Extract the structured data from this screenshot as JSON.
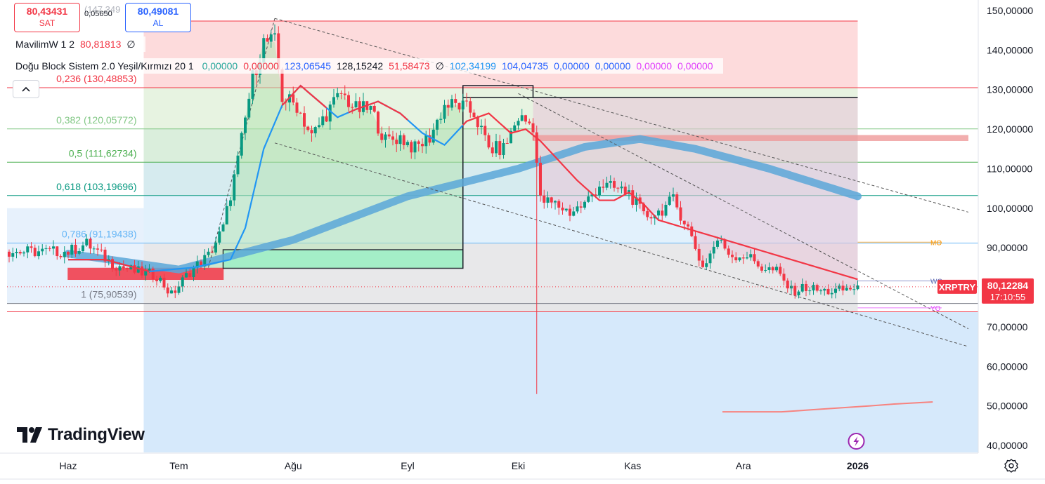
{
  "toolbar": {
    "sell_price": "80,43431",
    "sell_label": "SAT",
    "buy_price": "80,49081",
    "buy_label": "AL",
    "spread": "0,05650",
    "hidden_value": "(147,349"
  },
  "indicators": {
    "row1": {
      "name": "MavilimW 1 2",
      "value": "80,81813",
      "value_color": "#f23645",
      "flag": "∅"
    },
    "row2": {
      "name": "Doğu Block Sistem 2.0 Yeşil/Kırmızı 20 1",
      "values": [
        {
          "text": "0,00000",
          "color": "#26a69a"
        },
        {
          "text": "0,00000",
          "color": "#f23645"
        },
        {
          "text": "123,06545",
          "color": "#2962ff"
        },
        {
          "text": "128,15242",
          "color": "#131722"
        },
        {
          "text": "51,58473",
          "color": "#f23645"
        },
        {
          "text": "∅",
          "color": "#131722"
        },
        {
          "text": "102,34199",
          "color": "#2196f3"
        },
        {
          "text": "104,04735",
          "color": "#2962ff"
        },
        {
          "text": "0,00000",
          "color": "#2962ff"
        },
        {
          "text": "0,00000",
          "color": "#2962ff"
        },
        {
          "text": "0,00000",
          "color": "#e040fb"
        },
        {
          "text": "0,00000",
          "color": "#e040fb"
        }
      ]
    },
    "collapse_icon": "chevron-up-icon"
  },
  "fib_levels": [
    {
      "label": "0,236 (130,48853)",
      "price": 130.48853,
      "color": "#f23645",
      "fill": "#fdd5d6"
    },
    {
      "label": "0,382 (120,05772)",
      "price": 120.05772,
      "color": "#81c784",
      "fill": "#e3f1dc"
    },
    {
      "label": "0,5 (111,62734)",
      "price": 111.62734,
      "color": "#4caf50",
      "fill": "#d4ebd6"
    },
    {
      "label": "0,618 (103,19696)",
      "price": 103.19696,
      "color": "#089981",
      "fill": "#cfe7ec"
    },
    {
      "label": "0,786 (91,19438)",
      "price": 91.19438,
      "color": "#64b5f6",
      "fill": "#ddeefb"
    },
    {
      "label": "1 (75,90539)",
      "price": 75.90539,
      "color": "#787b86",
      "fill": "#e4e4e6"
    }
  ],
  "fib_top_price": 147.349,
  "fib_extension_price": 73.8,
  "pivot_labels": [
    {
      "text": "MO",
      "price": 91.4,
      "color": "#ff9800"
    },
    {
      "text": "WC",
      "price": 81.6,
      "color": "#5d6bb5"
    },
    {
      "text": "YO",
      "price": 74.8,
      "color": "#e040fb"
    }
  ],
  "price_tag": {
    "symbol": "XRPTRY",
    "price": "80,12284",
    "countdown": "17:10:55",
    "value": 80.12284,
    "color": "#f23645"
  },
  "logo": {
    "text": "TradingView",
    "icon": "tradingview-logo-icon"
  },
  "bottom_icons": {
    "event_icon": "flash-icon",
    "settings_icon": "gear-icon"
  },
  "chart_data": {
    "type": "candlestick",
    "symbol": "XRPTRY",
    "y_axis_labels": [
      "150,00000",
      "140,00000",
      "130,00000",
      "120,00000",
      "110,00000",
      "100,00000",
      "90,00000",
      "70,00000",
      "60,00000",
      "50,00000",
      "40,00000"
    ],
    "y_axis_values": [
      150,
      140,
      130,
      120,
      110,
      100,
      90,
      70,
      60,
      50,
      40
    ],
    "ylim": [
      38,
      152
    ],
    "x_axis_labels": [
      "Haz",
      "Tem",
      "Ağu",
      "Eyl",
      "Eki",
      "Kas",
      "Ara",
      "2026"
    ],
    "x_axis_days": [
      0,
      30,
      61,
      92,
      122,
      153,
      183,
      214
    ],
    "bold_x_labels": [
      "2026"
    ],
    "last_day": 214,
    "anchors": [
      {
        "d": 0,
        "p": 89
      },
      {
        "d": 5,
        "p": 91
      },
      {
        "d": 12,
        "p": 86
      },
      {
        "d": 18,
        "p": 84
      },
      {
        "d": 24,
        "p": 83
      },
      {
        "d": 28,
        "p": 78
      },
      {
        "d": 33,
        "p": 84
      },
      {
        "d": 38,
        "p": 88
      },
      {
        "d": 42,
        "p": 95
      },
      {
        "d": 46,
        "p": 112
      },
      {
        "d": 50,
        "p": 133
      },
      {
        "d": 53,
        "p": 142
      },
      {
        "d": 56,
        "p": 142
      },
      {
        "d": 58,
        "p": 128
      },
      {
        "d": 62,
        "p": 126
      },
      {
        "d": 66,
        "p": 118
      },
      {
        "d": 70,
        "p": 124
      },
      {
        "d": 74,
        "p": 129
      },
      {
        "d": 78,
        "p": 125
      },
      {
        "d": 82,
        "p": 125
      },
      {
        "d": 86,
        "p": 117
      },
      {
        "d": 90,
        "p": 118
      },
      {
        "d": 94,
        "p": 115
      },
      {
        "d": 98,
        "p": 118
      },
      {
        "d": 102,
        "p": 126
      },
      {
        "d": 106,
        "p": 126
      },
      {
        "d": 110,
        "p": 124
      },
      {
        "d": 114,
        "p": 115
      },
      {
        "d": 118,
        "p": 115
      },
      {
        "d": 122,
        "p": 123
      },
      {
        "d": 126,
        "p": 121
      },
      {
        "d": 128,
        "p": 102
      },
      {
        "d": 132,
        "p": 101
      },
      {
        "d": 136,
        "p": 99
      },
      {
        "d": 140,
        "p": 101
      },
      {
        "d": 144,
        "p": 106
      },
      {
        "d": 148,
        "p": 105
      },
      {
        "d": 152,
        "p": 104
      },
      {
        "d": 156,
        "p": 98
      },
      {
        "d": 160,
        "p": 99
      },
      {
        "d": 164,
        "p": 102
      },
      {
        "d": 168,
        "p": 95
      },
      {
        "d": 172,
        "p": 85
      },
      {
        "d": 176,
        "p": 92
      },
      {
        "d": 180,
        "p": 88
      },
      {
        "d": 184,
        "p": 88
      },
      {
        "d": 188,
        "p": 85
      },
      {
        "d": 192,
        "p": 84
      },
      {
        "d": 196,
        "p": 79
      },
      {
        "d": 200,
        "p": 80
      },
      {
        "d": 204,
        "p": 79
      },
      {
        "d": 208,
        "p": 79
      },
      {
        "d": 211,
        "p": 79.5
      },
      {
        "d": 214,
        "p": 80.1
      }
    ],
    "spike_low": {
      "d": 127,
      "p": 53
    },
    "wma_lag_days": 5,
    "mavilim_anchors": [
      {
        "d": 0,
        "p": 87
      },
      {
        "d": 10,
        "p": 87
      },
      {
        "d": 22,
        "p": 84
      },
      {
        "d": 34,
        "p": 85
      },
      {
        "d": 44,
        "p": 87
      },
      {
        "d": 48,
        "p": 95
      },
      {
        "d": 53,
        "p": 115
      },
      {
        "d": 58,
        "p": 126
      },
      {
        "d": 63,
        "p": 131
      },
      {
        "d": 68,
        "p": 127
      },
      {
        "d": 73,
        "p": 123
      },
      {
        "d": 78,
        "p": 125
      },
      {
        "d": 84,
        "p": 127
      },
      {
        "d": 90,
        "p": 124
      },
      {
        "d": 96,
        "p": 119
      },
      {
        "d": 102,
        "p": 116
      },
      {
        "d": 108,
        "p": 122
      },
      {
        "d": 114,
        "p": 124
      },
      {
        "d": 120,
        "p": 119
      },
      {
        "d": 124,
        "p": 120
      },
      {
        "d": 128,
        "p": 117
      },
      {
        "d": 132,
        "p": 113
      },
      {
        "d": 138,
        "p": 107
      },
      {
        "d": 144,
        "p": 102
      },
      {
        "d": 148,
        "p": 102
      },
      {
        "d": 152,
        "p": 104
      },
      {
        "d": 156,
        "p": 101
      },
      {
        "d": 160,
        "p": 97
      },
      {
        "d": 214,
        "p": 82
      }
    ],
    "ma200_band": [
      {
        "d": 0,
        "p": 88.5
      },
      {
        "d": 30,
        "p": 84.5
      },
      {
        "d": 61,
        "p": 92
      },
      {
        "d": 92,
        "p": 103
      },
      {
        "d": 122,
        "p": 110
      },
      {
        "d": 140,
        "p": 115.5
      },
      {
        "d": 155,
        "p": 117.5
      },
      {
        "d": 170,
        "p": 115
      },
      {
        "d": 190,
        "p": 110
      },
      {
        "d": 214,
        "p": 103
      }
    ],
    "support_line": [
      {
        "d": 216,
        "p": 48.5
      },
      {
        "d": 232,
        "p": 48.5
      },
      {
        "d": 240,
        "p": 49
      },
      {
        "d": 256,
        "p": 50
      },
      {
        "d": 263,
        "p": 50.5
      },
      {
        "d": 273,
        "p": 51
      }
    ],
    "trend_lines": [
      {
        "from": {
          "d": 56,
          "p": 148
        },
        "to": {
          "d": 244,
          "p": 99
        }
      },
      {
        "from": {
          "d": 56,
          "p": 116.5
        },
        "to": {
          "d": 244,
          "p": 65
        }
      },
      {
        "from": {
          "d": 122,
          "p": 129
        },
        "to": {
          "d": 244,
          "p": 69.5
        }
      },
      {
        "from": {
          "d": 38,
          "p": 85
        },
        "to": {
          "d": 56,
          "p": 148
        }
      }
    ],
    "boxes": [
      {
        "d1": 0,
        "d2": 42,
        "p1": 84.8,
        "p2": 82,
        "fill": "#f23645",
        "border": "#f23645"
      },
      {
        "d1": 42,
        "d2": 107,
        "p1": 89.5,
        "p2": 84.8,
        "fill": "#9ef0c7",
        "border": "#131722"
      },
      {
        "d1": 107,
        "d2": 126,
        "p1": 131,
        "p2": 128,
        "fill": "none",
        "border": "#131722"
      }
    ],
    "green_zone": {
      "d1": 30,
      "d2": 107,
      "p_low": 84.8,
      "color": "#b7e4b4"
    },
    "red_zone": {
      "d1": 126,
      "d2": 214,
      "p_high": 128,
      "color": "#e8c8d8"
    },
    "resistance_band": {
      "d1": 126,
      "d2": 244,
      "p1": 118.5,
      "p2": 117
    },
    "grid": false,
    "legend": "none"
  }
}
